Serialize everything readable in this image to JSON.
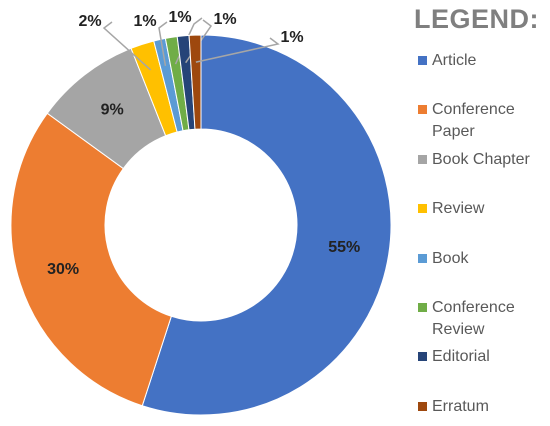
{
  "chart_data": {
    "type": "donut",
    "legend_title": "LEGEND:",
    "categories": [
      "Article",
      "Conference Paper",
      "Book Chapter",
      "Review",
      "Book",
      "Conference Review",
      "Editorial",
      "Erratum"
    ],
    "values": [
      55,
      30,
      9,
      2,
      1,
      1,
      1,
      1
    ],
    "value_labels": [
      "55%",
      "30%",
      "9%",
      "2%",
      "1%",
      "1%",
      "1%",
      "1%"
    ],
    "colors": [
      "#4472c4",
      "#ed7d31",
      "#a5a5a5",
      "#ffc000",
      "#5b9bd5",
      "#70ad47",
      "#264478",
      "#9e480e"
    ],
    "legend": "right"
  }
}
